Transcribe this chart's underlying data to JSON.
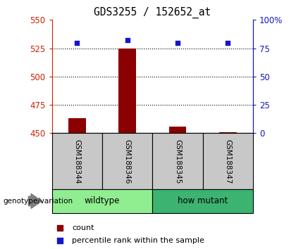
{
  "title": "GDS3255 / 152652_at",
  "samples": [
    "GSM188344",
    "GSM188346",
    "GSM188345",
    "GSM188347"
  ],
  "counts": [
    463,
    525,
    456,
    451
  ],
  "percentiles": [
    80,
    82,
    80,
    80
  ],
  "groups": [
    {
      "label": "wildtype",
      "indices": [
        0,
        1
      ],
      "color": "#90ee90"
    },
    {
      "label": "how mutant",
      "indices": [
        2,
        3
      ],
      "color": "#3cb371"
    }
  ],
  "ylim_left": [
    450,
    550
  ],
  "ylim_right": [
    0,
    100
  ],
  "yticks_left": [
    450,
    475,
    500,
    525,
    550
  ],
  "yticks_right": [
    0,
    25,
    50,
    75,
    100
  ],
  "bar_color": "#8b0000",
  "dot_color": "#1515cc",
  "left_tick_color": "#cc2200",
  "right_tick_color": "#1515cc",
  "sample_box_color": "#c8c8c8",
  "legend_count_label": "count",
  "legend_pct_label": "percentile rank within the sample",
  "genotype_label": "genotype/variation"
}
